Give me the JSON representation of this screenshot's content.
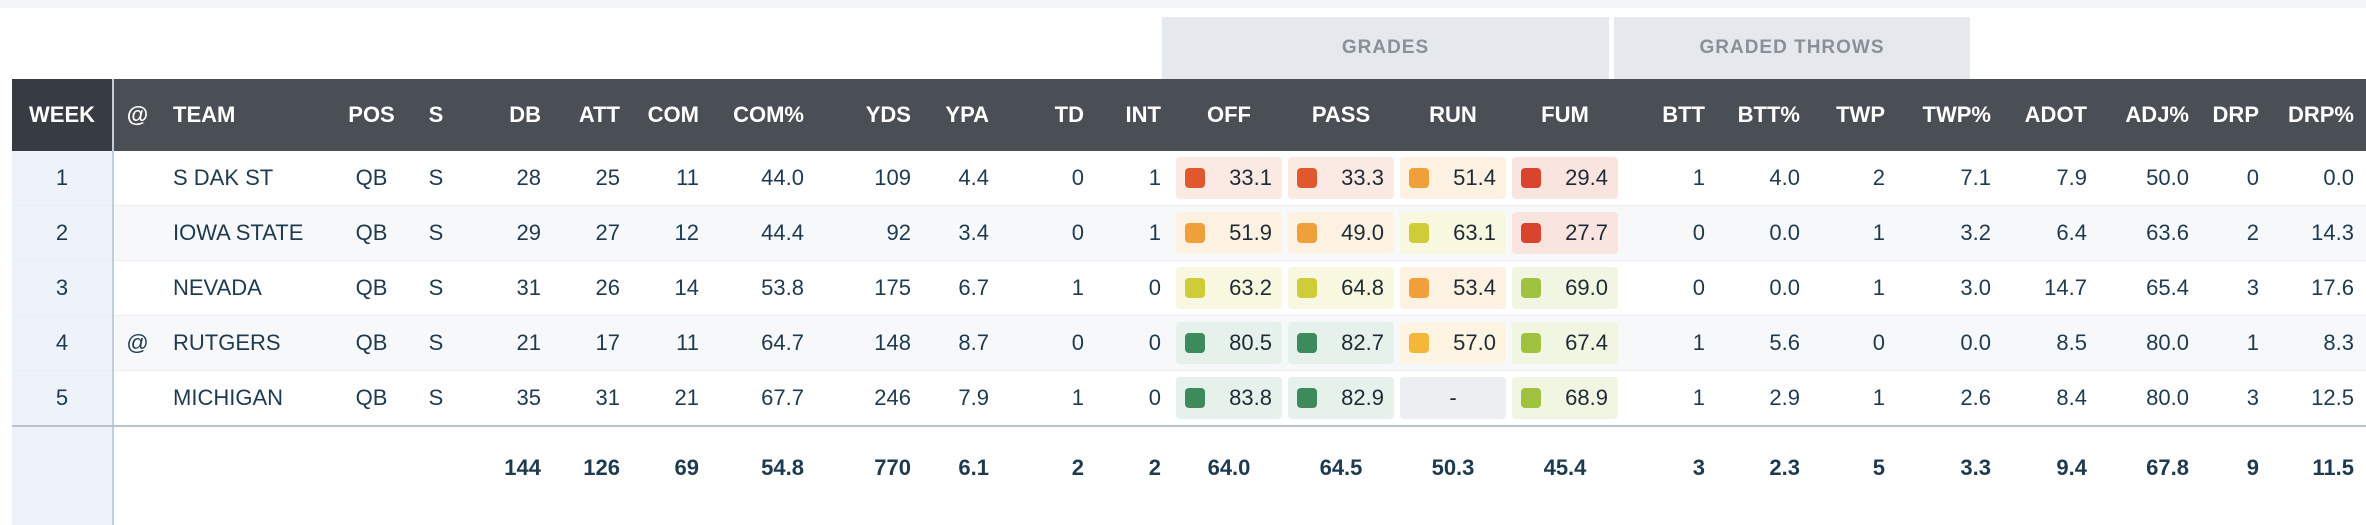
{
  "group_headers": {
    "grades": "GRADES",
    "graded_throws": "GRADED THROWS"
  },
  "columns": {
    "week": "WEEK",
    "at": "@",
    "team": "TEAM",
    "pos": "POS",
    "s": "S",
    "db": "DB",
    "att": "ATT",
    "com": "COM",
    "com_pct": "COM%",
    "yds": "YDS",
    "ypa": "YPA",
    "td": "TD",
    "int": "INT",
    "off": "OFF",
    "pass": "PASS",
    "run": "RUN",
    "fum": "FUM",
    "btt": "BTT",
    "btt_pct": "BTT%",
    "twp": "TWP",
    "twp_pct": "TWP%",
    "adot": "ADOT",
    "adj_pct": "ADJ%",
    "drp": "DRP",
    "drp_pct": "DRP%"
  },
  "grade_colors": {
    "red": "#e0502c",
    "deep_red": "#d9442f",
    "orange": "#f0a03a",
    "amber": "#f5b73a",
    "yellow_green": "#cfcc3a",
    "light_green": "#9fc33e",
    "green": "#3d8a5c"
  },
  "rows": [
    {
      "week": "1",
      "at": "",
      "team": "S DAK ST",
      "pos": "QB",
      "s": "S",
      "db": "28",
      "att": "25",
      "com": "11",
      "com_pct": "44.0",
      "yds": "109",
      "ypa": "4.4",
      "td": "0",
      "int": "1",
      "off": {
        "value": "33.1",
        "color": "#e0582e",
        "bg": "#fbe9e3"
      },
      "pass": {
        "value": "33.3",
        "color": "#e0582e",
        "bg": "#fbe9e3"
      },
      "run": {
        "value": "51.4",
        "color": "#f0a03a",
        "bg": "#fdf2e2"
      },
      "fum": {
        "value": "29.4",
        "color": "#d9442f",
        "bg": "#fae4df"
      },
      "btt": "1",
      "btt_pct": "4.0",
      "twp": "2",
      "twp_pct": "7.1",
      "adot": "7.9",
      "adj_pct": "50.0",
      "drp": "0",
      "drp_pct": "0.0"
    },
    {
      "week": "2",
      "at": "",
      "team": "IOWA STATE",
      "pos": "QB",
      "s": "S",
      "db": "29",
      "att": "27",
      "com": "12",
      "com_pct": "44.4",
      "yds": "92",
      "ypa": "3.4",
      "td": "0",
      "int": "1",
      "off": {
        "value": "51.9",
        "color": "#f0a03a",
        "bg": "#fdf2e2"
      },
      "pass": {
        "value": "49.0",
        "color": "#f0a03a",
        "bg": "#fdf2e2"
      },
      "run": {
        "value": "63.1",
        "color": "#cfcc3a",
        "bg": "#f8f8e0"
      },
      "fum": {
        "value": "27.7",
        "color": "#d9442f",
        "bg": "#fae4df"
      },
      "btt": "0",
      "btt_pct": "0.0",
      "twp": "1",
      "twp_pct": "3.2",
      "adot": "6.4",
      "adj_pct": "63.6",
      "drp": "2",
      "drp_pct": "14.3"
    },
    {
      "week": "3",
      "at": "",
      "team": "NEVADA",
      "pos": "QB",
      "s": "S",
      "db": "31",
      "att": "26",
      "com": "14",
      "com_pct": "53.8",
      "yds": "175",
      "ypa": "6.7",
      "td": "1",
      "int": "0",
      "off": {
        "value": "63.2",
        "color": "#cfcc3a",
        "bg": "#f8f8e0"
      },
      "pass": {
        "value": "64.8",
        "color": "#cfcc3a",
        "bg": "#f8f8e0"
      },
      "run": {
        "value": "53.4",
        "color": "#f0a03a",
        "bg": "#fdf2e2"
      },
      "fum": {
        "value": "69.0",
        "color": "#9fc33e",
        "bg": "#f1f6e2"
      },
      "btt": "0",
      "btt_pct": "0.0",
      "twp": "1",
      "twp_pct": "3.0",
      "adot": "14.7",
      "adj_pct": "65.4",
      "drp": "3",
      "drp_pct": "17.6"
    },
    {
      "week": "4",
      "at": "@",
      "team": "RUTGERS",
      "pos": "QB",
      "s": "S",
      "db": "21",
      "att": "17",
      "com": "11",
      "com_pct": "64.7",
      "yds": "148",
      "ypa": "8.7",
      "td": "0",
      "int": "0",
      "off": {
        "value": "80.5",
        "color": "#3d8a5c",
        "bg": "#e5f1ea"
      },
      "pass": {
        "value": "82.7",
        "color": "#3d8a5c",
        "bg": "#e5f1ea"
      },
      "run": {
        "value": "57.0",
        "color": "#f5b73a",
        "bg": "#fdf5e2"
      },
      "fum": {
        "value": "67.4",
        "color": "#9fc33e",
        "bg": "#f1f6e2"
      },
      "btt": "1",
      "btt_pct": "5.6",
      "twp": "0",
      "twp_pct": "0.0",
      "adot": "8.5",
      "adj_pct": "80.0",
      "drp": "1",
      "drp_pct": "8.3"
    },
    {
      "week": "5",
      "at": "",
      "team": "MICHIGAN",
      "pos": "QB",
      "s": "S",
      "db": "35",
      "att": "31",
      "com": "21",
      "com_pct": "67.7",
      "yds": "246",
      "ypa": "7.9",
      "td": "1",
      "int": "0",
      "off": {
        "value": "83.8",
        "color": "#3d8a5c",
        "bg": "#e5f1ea"
      },
      "pass": {
        "value": "82.9",
        "color": "#3d8a5c",
        "bg": "#e5f1ea"
      },
      "run": {
        "value": "-",
        "color": "",
        "bg": "#eceef1"
      },
      "fum": {
        "value": "68.9",
        "color": "#9fc33e",
        "bg": "#f1f6e2"
      },
      "btt": "1",
      "btt_pct": "2.9",
      "twp": "1",
      "twp_pct": "2.6",
      "adot": "8.4",
      "adj_pct": "80.0",
      "drp": "3",
      "drp_pct": "12.5"
    }
  ],
  "totals": {
    "db": "144",
    "att": "126",
    "com": "69",
    "com_pct": "54.8",
    "yds": "770",
    "ypa": "6.1",
    "td": "2",
    "int": "2",
    "off": "64.0",
    "pass": "64.5",
    "run": "50.3",
    "fum": "45.4",
    "btt": "3",
    "btt_pct": "2.3",
    "twp": "5",
    "twp_pct": "3.3",
    "adot": "9.4",
    "adj_pct": "67.8",
    "drp": "9",
    "drp_pct": "11.5"
  }
}
